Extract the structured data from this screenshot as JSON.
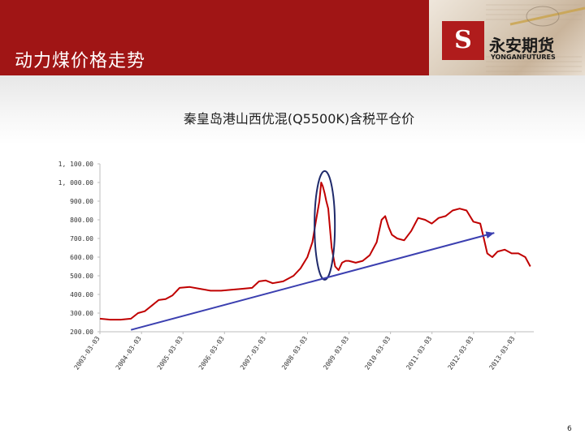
{
  "slide": {
    "title": "动力煤价格走势",
    "page_number": "6"
  },
  "logo": {
    "name_cn": "永安期货",
    "name_en": "YONGANFUTURES",
    "emblem_icon": "yongan-logo-icon",
    "emblem_letter": "S"
  },
  "colors": {
    "header_red": "#a01515",
    "series_red": "#c00000",
    "trend_arrow": "#3b3fb0",
    "highlight_ellipse": "#1f2a6b"
  },
  "chart_data": {
    "type": "line",
    "title": "秦皇岛港山西优混(Q5500K)含税平仓价",
    "xlabel": "",
    "ylabel": "",
    "ylim": [
      200,
      1100
    ],
    "yticks": [
      200,
      300,
      400,
      500,
      600,
      700,
      800,
      900,
      1000,
      1100
    ],
    "ytick_labels": [
      "200.00",
      "300.00",
      "400.00",
      "500.00",
      "600.00",
      "700.00",
      "800.00",
      "900.00",
      "1, 000.00",
      "1, 100.00"
    ],
    "xticks": [
      "2003-03-03",
      "2004-03-03",
      "2005-03-03",
      "2006-03-03",
      "2007-03-03",
      "2008-03-03",
      "2009-03-03",
      "2010-03-03",
      "2011-03-03",
      "2012-03-03",
      "2013-03-03"
    ],
    "grid": false,
    "legend": "none",
    "series": [
      {
        "x": [
          "2003-03-03",
          "2003-06-01",
          "2003-09-01",
          "2003-12-01",
          "2004-02-01",
          "2004-04-01",
          "2004-06-01",
          "2004-08-01",
          "2004-10-01",
          "2004-12-01",
          "2005-02-01",
          "2005-05-01",
          "2005-08-01",
          "2005-11-01",
          "2006-02-01",
          "2006-05-01",
          "2006-08-01",
          "2006-11-01",
          "2007-01-01",
          "2007-03-01",
          "2007-05-01",
          "2007-08-01",
          "2007-11-01",
          "2008-01-01",
          "2008-03-01",
          "2008-04-15",
          "2008-05-15",
          "2008-06-15",
          "2008-07-01",
          "2008-07-15",
          "2008-08-01",
          "2008-08-15",
          "2008-09-01",
          "2008-10-01",
          "2008-11-01",
          "2008-12-01",
          "2009-01-01",
          "2009-02-01",
          "2009-03-01",
          "2009-05-01",
          "2009-07-01",
          "2009-09-01",
          "2009-11-01",
          "2009-12-15",
          "2010-01-15",
          "2010-02-15",
          "2010-03-15",
          "2010-05-01",
          "2010-07-01",
          "2010-09-01",
          "2010-11-01",
          "2011-01-01",
          "2011-03-01",
          "2011-05-01",
          "2011-07-01",
          "2011-09-01",
          "2011-11-01",
          "2012-01-01",
          "2012-03-01",
          "2012-05-01",
          "2012-06-01",
          "2012-07-01",
          "2012-08-15",
          "2012-10-01",
          "2012-12-01",
          "2013-02-01",
          "2013-04-01",
          "2013-06-01",
          "2013-07-15"
        ],
        "y": [
          270,
          265,
          265,
          270,
          300,
          310,
          340,
          370,
          375,
          395,
          435,
          440,
          430,
          420,
          420,
          425,
          430,
          435,
          470,
          475,
          460,
          470,
          500,
          540,
          600,
          680,
          790,
          900,
          1000,
          980,
          940,
          900,
          860,
          650,
          550,
          530,
          570,
          580,
          580,
          570,
          580,
          610,
          680,
          800,
          820,
          760,
          720,
          700,
          690,
          740,
          810,
          800,
          780,
          810,
          820,
          850,
          860,
          850,
          790,
          780,
          700,
          620,
          600,
          630,
          640,
          620,
          620,
          600,
          550
        ]
      }
    ],
    "annotations": [
      {
        "type": "ellipse",
        "label": "",
        "around": [
          "2008-06-01",
          "2008-10-01"
        ]
      },
      {
        "type": "arrow",
        "label": "",
        "from": [
          "2003-12-01",
          210
        ],
        "to": [
          "2012-09-01",
          730
        ]
      }
    ]
  }
}
